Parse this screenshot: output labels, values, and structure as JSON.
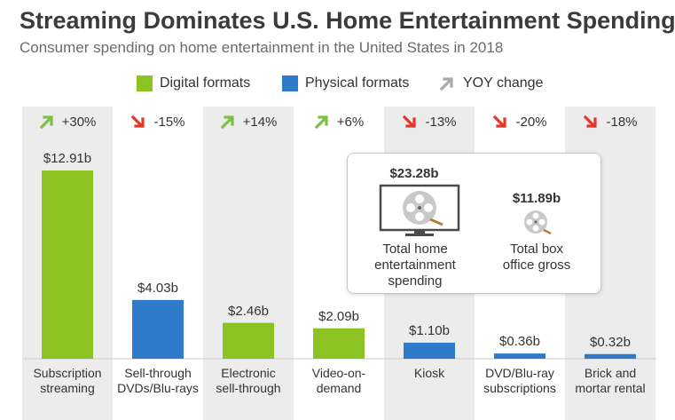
{
  "title": "Streaming Dominates U.S. Home Entertainment Spending",
  "subtitle": "Consumer spending on home entertainment in the United States in 2018",
  "legend": {
    "digital": "Digital formats",
    "physical": "Physical formats",
    "yoy": "YOY change"
  },
  "colors": {
    "digital": "#8cc322",
    "physical": "#2f7ac9",
    "up_arrow": "#7dc242",
    "down_arrow": "#e0392b",
    "yoy_arrow": "#a8a8a8",
    "column_bg": "#ececec"
  },
  "chart_data": {
    "type": "bar",
    "unit": "billion USD",
    "categories": [
      [
        "Subscription",
        "streaming"
      ],
      [
        "Sell-through",
        "DVDs/Blu-rays"
      ],
      [
        "Electronic",
        "sell-through"
      ],
      [
        "Video-on-",
        "demand"
      ],
      [
        "Kiosk"
      ],
      [
        "DVD/Blu-ray",
        "subscriptions"
      ],
      [
        "Brick and",
        "mortar rental"
      ]
    ],
    "values": [
      12.91,
      4.03,
      2.46,
      2.09,
      1.1,
      0.36,
      0.32
    ],
    "value_labels": [
      "$12.91b",
      "$4.03b",
      "$2.46b",
      "$2.09b",
      "$1.10b",
      "$0.36b",
      "$0.32b"
    ],
    "format": [
      "digital",
      "physical",
      "digital",
      "digital",
      "physical",
      "physical",
      "physical"
    ],
    "yoy_change": [
      "+30%",
      "-15%",
      "+14%",
      "+6%",
      "-13%",
      "-20%",
      "-18%"
    ],
    "yoy_direction": [
      "up",
      "down",
      "up",
      "up",
      "down",
      "down",
      "down"
    ],
    "ylim": [
      0,
      14
    ]
  },
  "inset": {
    "total_home_value": "$23.28b",
    "total_home_label": [
      "Total home",
      "entertainment",
      "spending"
    ],
    "box_office_value": "$11.89b",
    "box_office_label": [
      "Total box",
      "office gross"
    ],
    "icons": [
      "tv-film-reel-icon",
      "film-reel-icon"
    ]
  }
}
